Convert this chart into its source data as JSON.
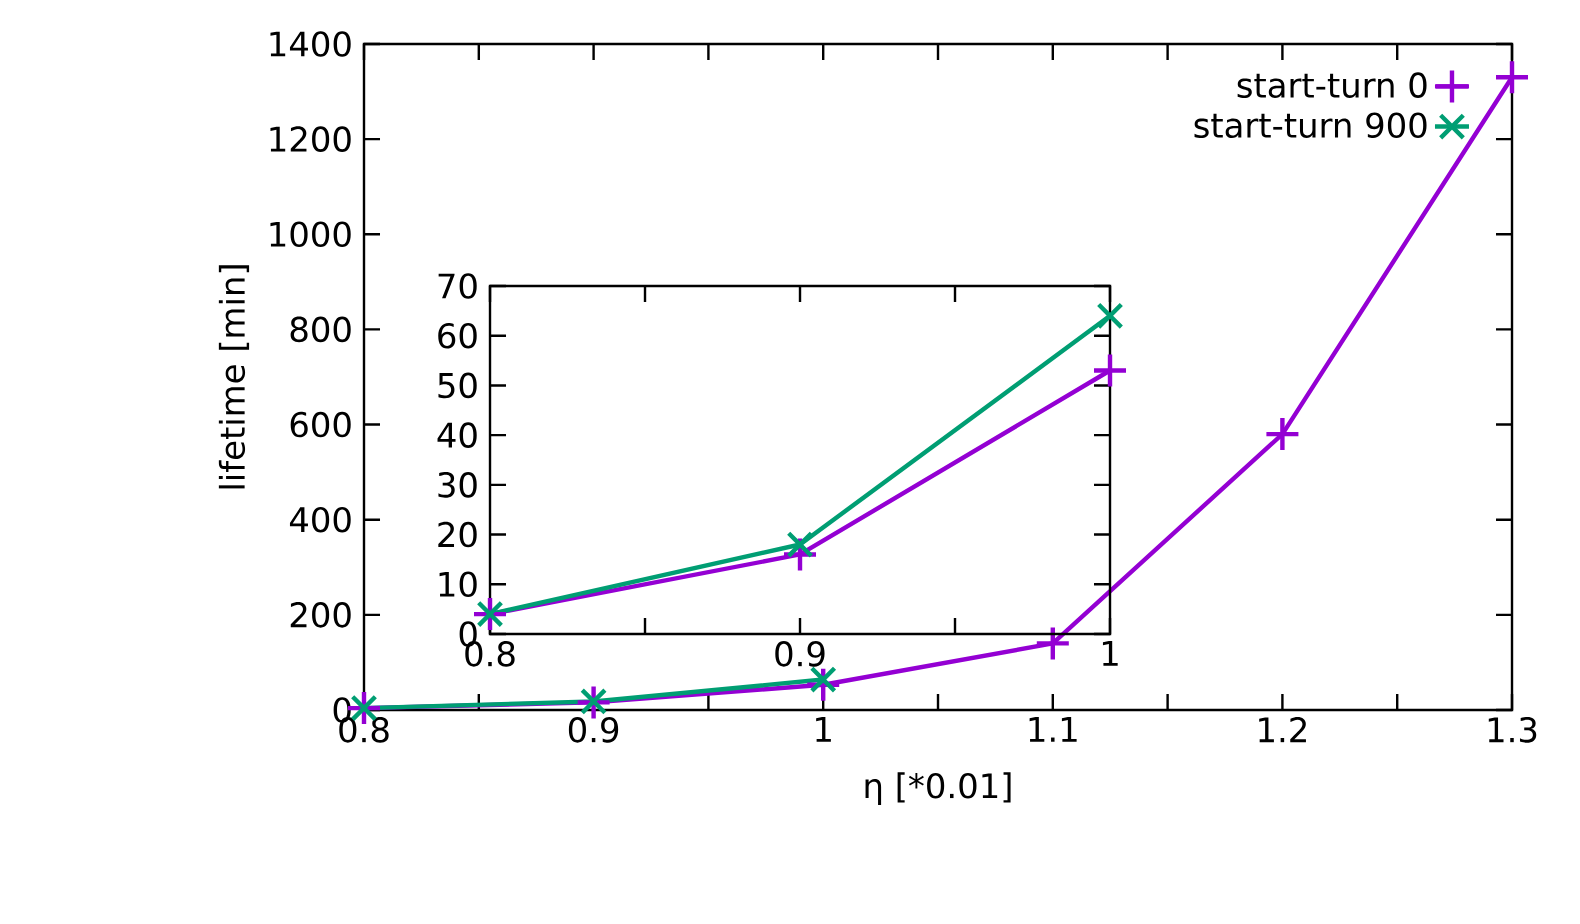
{
  "chart_data": [
    {
      "type": "line",
      "xlabel": "η [*0.01]",
      "ylabel": "lifetime [min]",
      "xlim": [
        0.8,
        1.3
      ],
      "ylim": [
        0,
        1400
      ],
      "xticks": [
        0.8,
        {
          "value": 0.85,
          "label": null
        },
        0.9,
        {
          "value": 0.95,
          "label": null
        },
        1,
        {
          "value": 1.05,
          "label": null
        },
        1.1,
        {
          "value": 1.15,
          "label": null
        },
        1.2,
        {
          "value": 1.25,
          "label": null
        },
        1.3
      ],
      "yticks": [
        0,
        200,
        400,
        600,
        800,
        1000,
        1200,
        1400
      ],
      "grid": false,
      "legend": "top right",
      "line_style": "solid",
      "series": [
        {
          "name": "start-turn 0",
          "color": "#9400d3",
          "marker": "plus",
          "x": [
            0.8,
            0.9,
            1.0,
            1.1,
            1.2,
            1.3
          ],
          "values": [
            4,
            16,
            53,
            140,
            580,
            1330
          ]
        },
        {
          "name": "start-turn 900",
          "color": "#009e73",
          "marker": "cross",
          "x": [
            0.8,
            0.9,
            1.0
          ],
          "values": [
            4,
            18,
            64
          ]
        }
      ]
    },
    {
      "type": "line",
      "xlim": [
        0.8,
        1.0
      ],
      "ylim": [
        0,
        70
      ],
      "xticks": [
        0.8,
        {
          "value": 0.85,
          "label": null
        },
        0.9,
        {
          "value": 0.95,
          "label": null
        },
        1
      ],
      "yticks": [
        0,
        10,
        20,
        30,
        40,
        50,
        60,
        70
      ],
      "grid": false,
      "legend": false,
      "line_style": "solid",
      "series": [
        {
          "color": "#9400d3",
          "marker": "plus",
          "x": [
            0.8,
            0.9,
            1.0
          ],
          "values": [
            4,
            16,
            53
          ]
        },
        {
          "color": "#009e73",
          "marker": "cross",
          "x": [
            0.8,
            0.9,
            1.0
          ],
          "values": [
            4,
            18,
            64
          ]
        }
      ]
    }
  ]
}
